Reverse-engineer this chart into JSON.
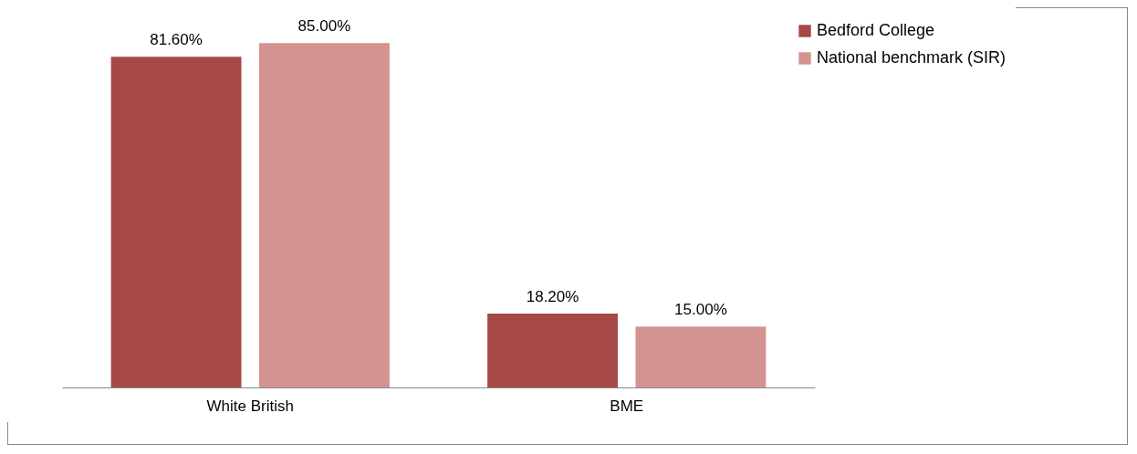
{
  "chart_data": {
    "type": "bar",
    "categories": [
      "White British",
      "BME"
    ],
    "series": [
      {
        "name": "Bedford College",
        "color": "#a84846",
        "values": [
          81.6,
          18.2
        ],
        "value_labels": [
          "81.60%",
          "18.20%"
        ]
      },
      {
        "name": "National benchmark (SIR)",
        "color": "#d39391",
        "values": [
          85.0,
          15.0
        ],
        "value_labels": [
          "85.00%",
          "15.00%"
        ]
      }
    ],
    "legend": "right"
  }
}
